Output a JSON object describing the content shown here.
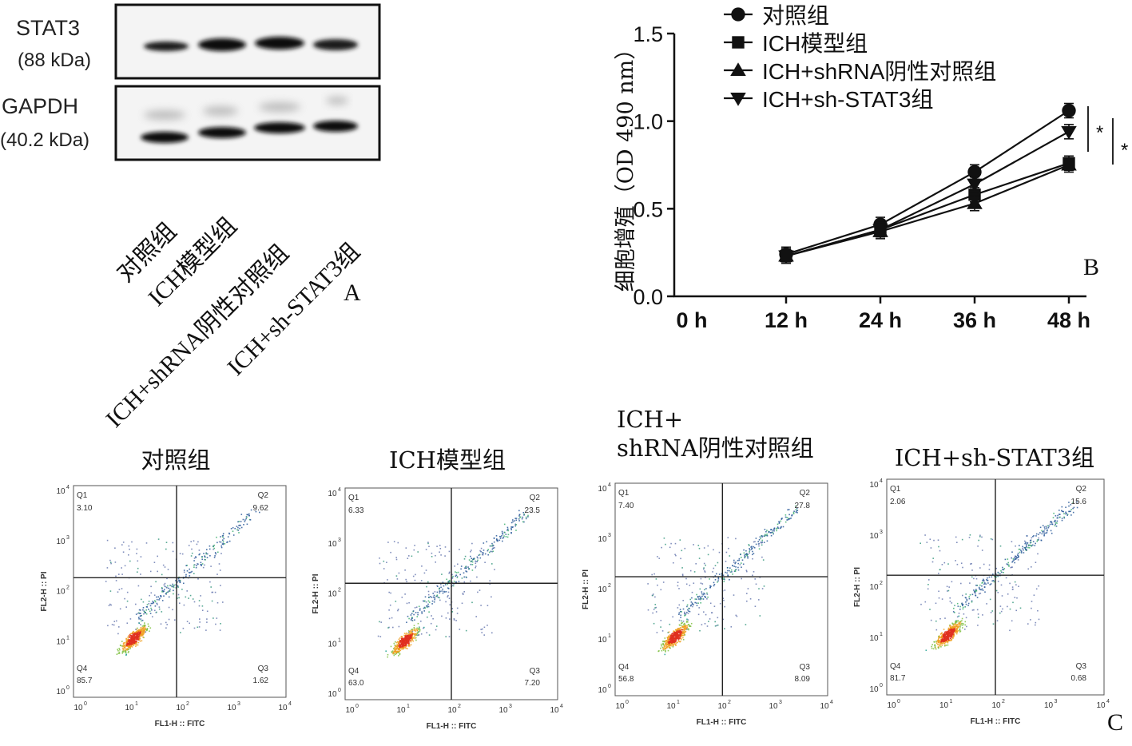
{
  "panel_a": {
    "letter": "A",
    "blots": [
      {
        "protein": "STAT3",
        "size": "(88 kDa)"
      },
      {
        "protein": "GAPDH",
        "size": "(40.2 kDa)"
      }
    ],
    "lanes": [
      "对照组",
      "ICH模型组",
      "ICH+shRNA阴性对照组",
      "ICH+sh-STAT3组"
    ]
  },
  "panel_b": {
    "letter": "B",
    "significance": [
      "*",
      "*"
    ]
  },
  "panel_c": {
    "letter": "C",
    "plots": [
      {
        "title": "对照组",
        "q1": "3.10",
        "q2": "9.62",
        "q3": "1.62",
        "q4": "85.7"
      },
      {
        "title": "ICH模型组",
        "q1": "6.33",
        "q2": "23.5",
        "q3": "7.20",
        "q4": "63.0"
      },
      {
        "title": "ICH+\nshRNA阴性对照组",
        "q1": "7.40",
        "q2": "27.8",
        "q3": "8.09",
        "q4": "56.8"
      },
      {
        "title": "ICH+sh-STAT3组",
        "q1": "2.06",
        "q2": "15.6",
        "q3": "0.68",
        "q4": "81.7"
      }
    ],
    "quadrant_names": [
      "Q1",
      "Q2",
      "Q3",
      "Q4"
    ],
    "x_axis_label": "FL1-H :: FITC",
    "y_axis_label": "FL2-H :: PI",
    "decade_ticks": [
      "10",
      "10",
      "10",
      "10",
      "10"
    ],
    "decade_exps": [
      "0",
      "1",
      "2",
      "3",
      "4"
    ]
  },
  "chart_data": {
    "type": "line",
    "ylabel": "细胞增殖（OD 490 nm）",
    "xlabel": "",
    "categories": [
      "0 h",
      "12 h",
      "24 h",
      "36 h",
      "48 h"
    ],
    "ylim": [
      0.0,
      1.5
    ],
    "yticks": [
      "0.0",
      "0.5",
      "1.0",
      "1.5"
    ],
    "legend_position": "top",
    "grid": false,
    "series": [
      {
        "name": "对照组",
        "marker": "circle",
        "values": [
          null,
          0.24,
          0.41,
          0.71,
          1.06
        ]
      },
      {
        "name": "ICH模型组",
        "marker": "square",
        "values": [
          null,
          0.23,
          0.38,
          0.58,
          0.76
        ]
      },
      {
        "name": "ICH+shRNA阴性对照组",
        "marker": "triangle-up",
        "values": [
          null,
          0.23,
          0.37,
          0.53,
          0.75
        ]
      },
      {
        "name": "ICH+sh-STAT3组",
        "marker": "triangle-down",
        "values": [
          null,
          0.23,
          0.38,
          0.64,
          0.94
        ]
      }
    ]
  }
}
